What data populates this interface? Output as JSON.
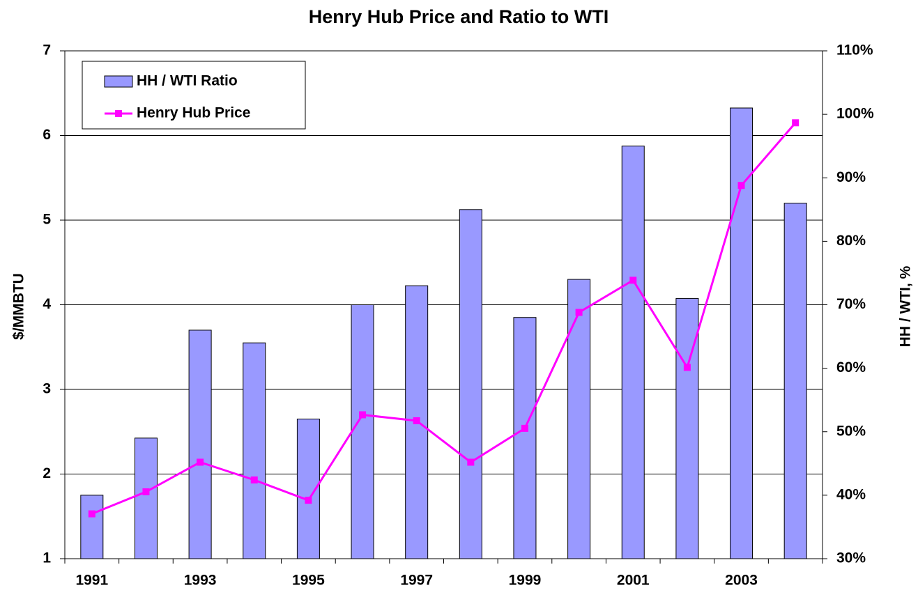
{
  "chart_data": {
    "type": "bar+line",
    "title": "Henry Hub Price and Ratio to WTI",
    "y_label": "$/MMBTU",
    "y2_label": "HH / WTI, %",
    "categories": [
      "1991",
      null,
      "1993",
      null,
      "1995",
      null,
      "1997",
      null,
      "1999",
      null,
      "2001",
      null,
      "2003",
      null
    ],
    "series": [
      {
        "name": "HH / WTI Ratio",
        "type": "bar",
        "axis": "y2",
        "color": "#9999ff",
        "values": [
          40,
          49,
          66,
          64,
          52,
          70,
          73,
          85,
          68,
          74,
          95,
          71,
          101,
          86
        ]
      },
      {
        "name": "Henry Hub Price",
        "type": "line",
        "axis": "y",
        "color": "#ff00ff",
        "values": [
          1.53,
          1.79,
          2.14,
          1.93,
          1.69,
          2.7,
          2.63,
          2.14,
          2.54,
          3.91,
          4.29,
          3.26,
          5.41,
          6.15
        ]
      }
    ],
    "ylim": [
      1,
      7
    ],
    "yticks": [
      1,
      2,
      3,
      4,
      5,
      6,
      7
    ],
    "y2lim": [
      30,
      110
    ],
    "y2ticks": [
      {
        "value": 30,
        "label": "30%"
      },
      {
        "value": 40,
        "label": "40%"
      },
      {
        "value": 50,
        "label": "50%"
      },
      {
        "value": 60,
        "label": "60%"
      },
      {
        "value": 70,
        "label": "70%"
      },
      {
        "value": 80,
        "label": "80%"
      },
      {
        "value": 90,
        "label": "90%"
      },
      {
        "value": 100,
        "label": "100%"
      },
      {
        "value": 110,
        "label": "110%"
      }
    ],
    "grid": true,
    "legend": "top-left"
  }
}
